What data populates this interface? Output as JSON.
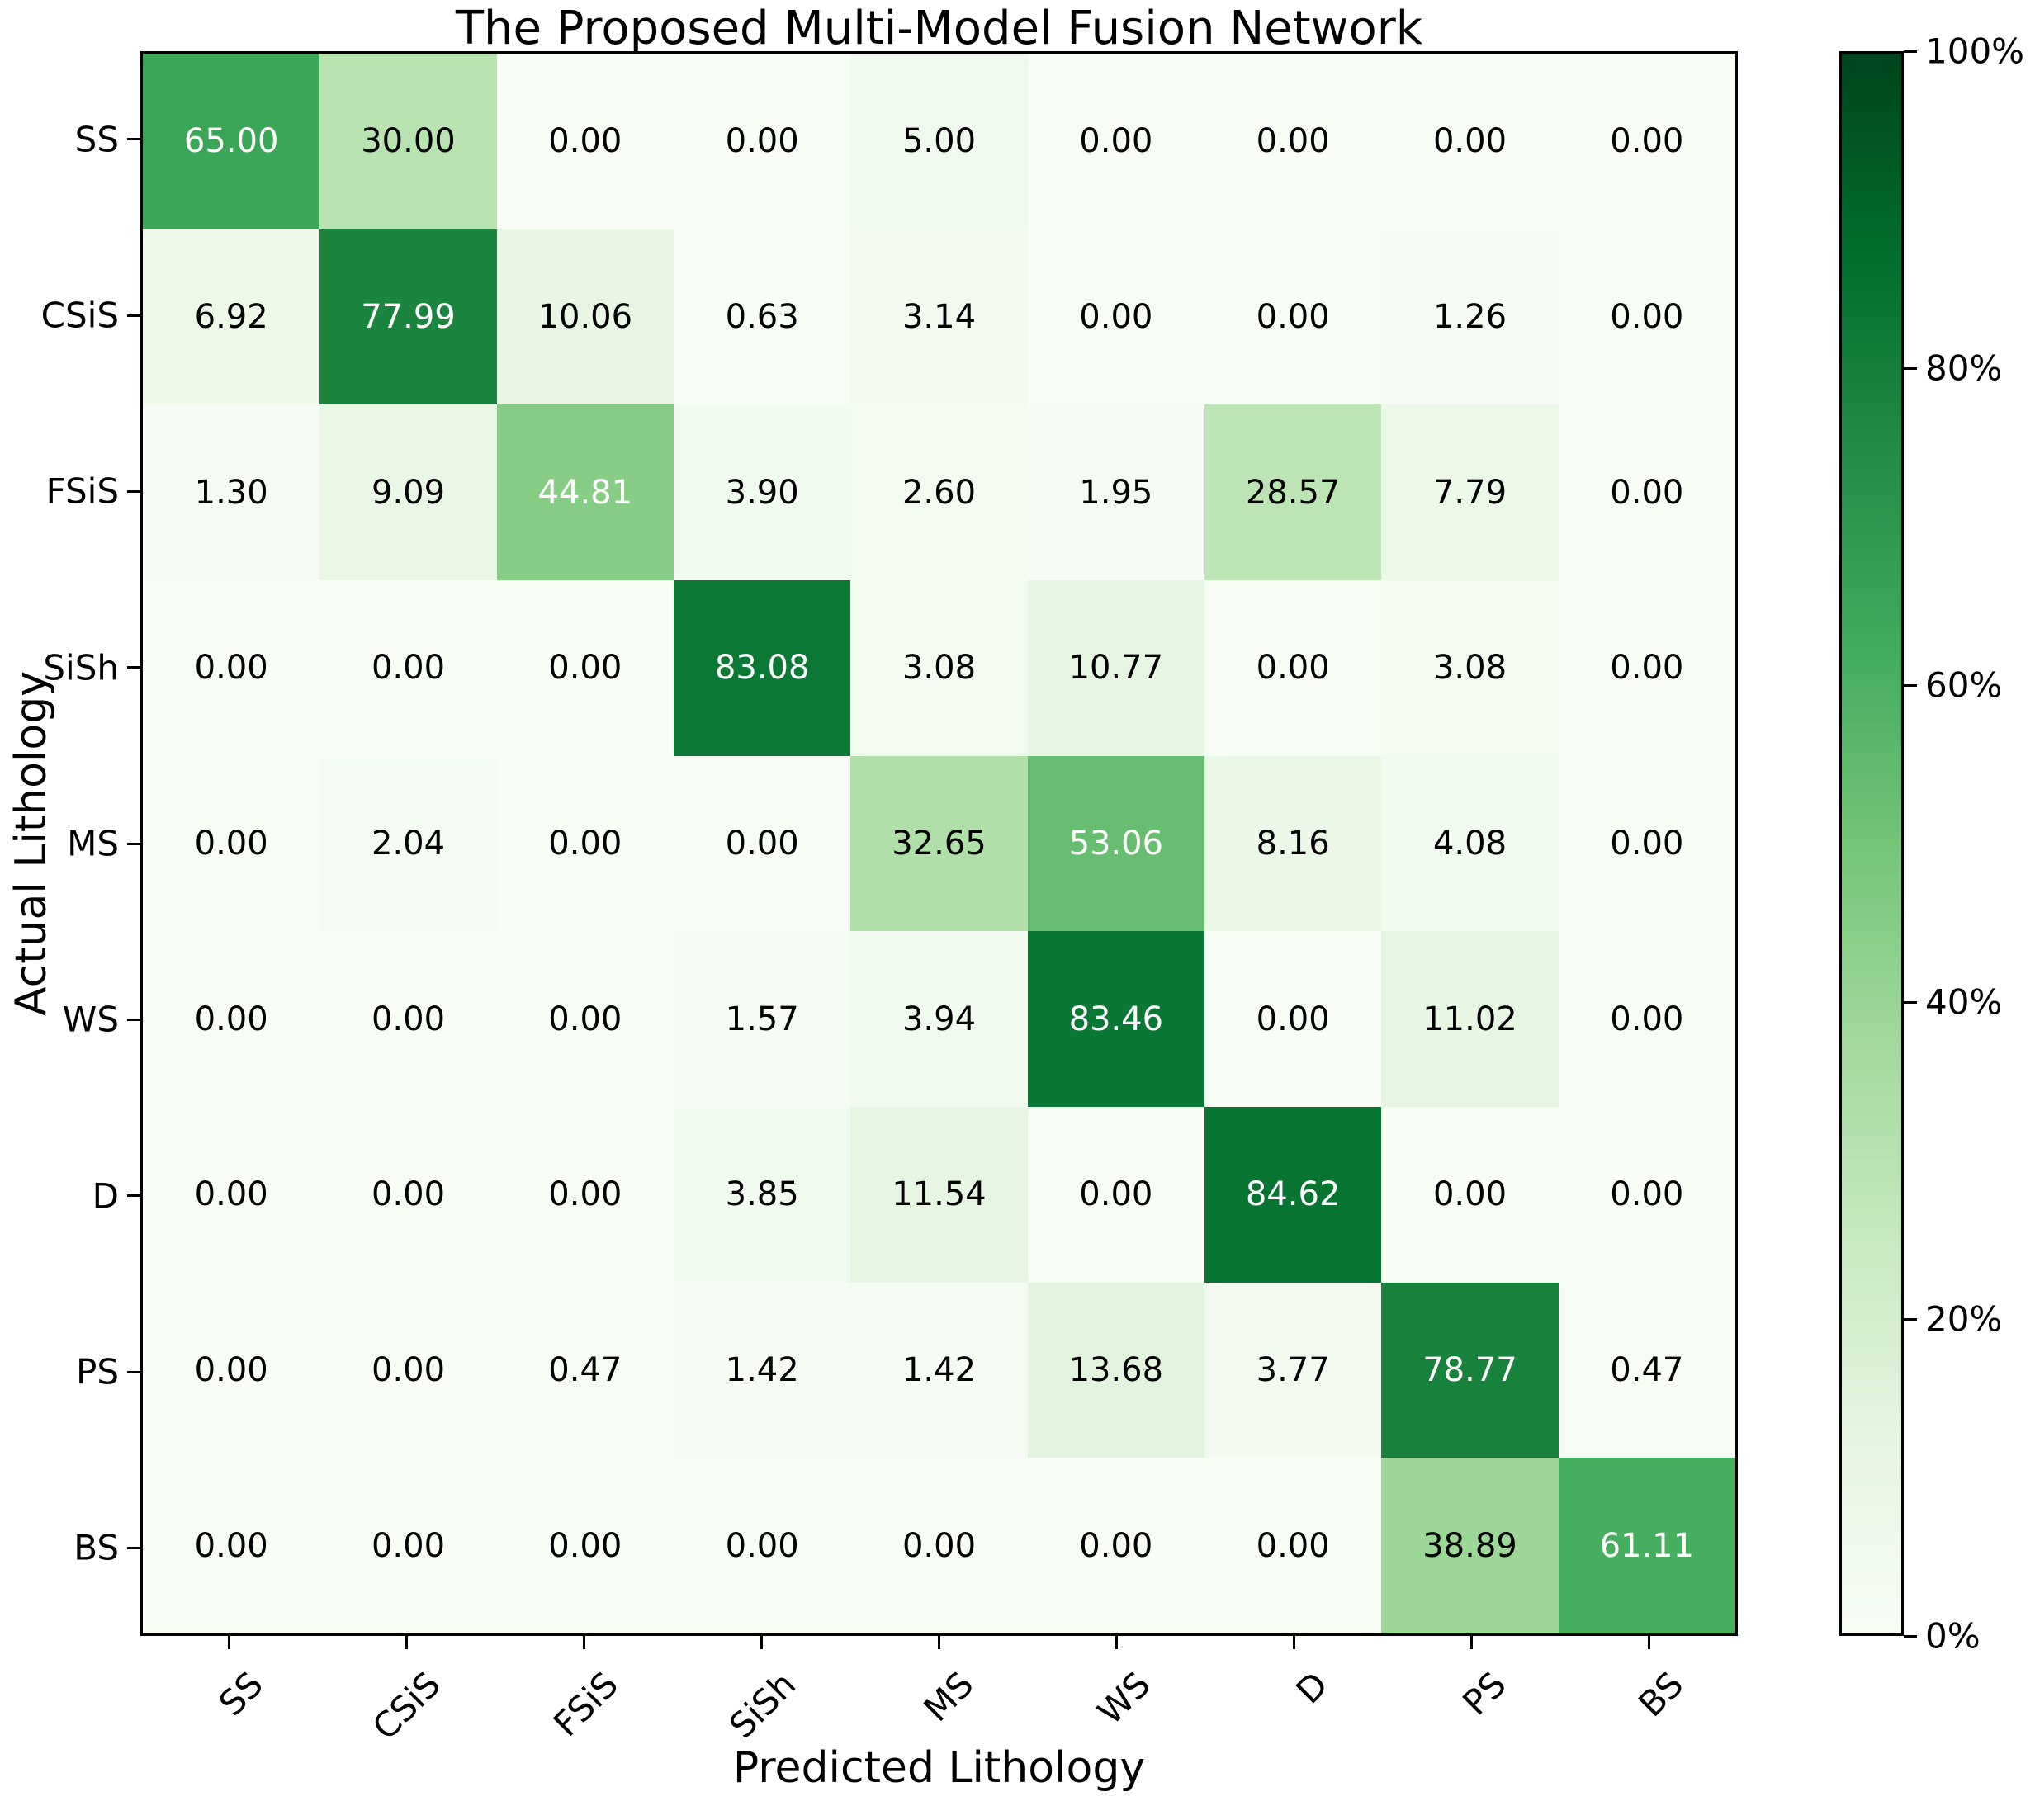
{
  "chart_data": {
    "type": "heatmap",
    "title": "The Proposed Multi-Model Fusion Network",
    "xlabel": "Predicted Lithology",
    "ylabel": "Actual Lithology",
    "x_categories": [
      "SS",
      "CSiS",
      "FSiS",
      "SiSh",
      "MS",
      "WS",
      "D",
      "PS",
      "BS"
    ],
    "y_categories": [
      "SS",
      "CSiS",
      "FSiS",
      "SiSh",
      "MS",
      "WS",
      "D",
      "PS",
      "BS"
    ],
    "matrix": [
      [
        65.0,
        30.0,
        0.0,
        0.0,
        5.0,
        0.0,
        0.0,
        0.0,
        0.0
      ],
      [
        6.92,
        77.99,
        10.06,
        0.63,
        3.14,
        0.0,
        0.0,
        1.26,
        0.0
      ],
      [
        1.3,
        9.09,
        44.81,
        3.9,
        2.6,
        1.95,
        28.57,
        7.79,
        0.0
      ],
      [
        0.0,
        0.0,
        0.0,
        83.08,
        3.08,
        10.77,
        0.0,
        3.08,
        0.0
      ],
      [
        0.0,
        2.04,
        0.0,
        0.0,
        32.65,
        53.06,
        8.16,
        4.08,
        0.0
      ],
      [
        0.0,
        0.0,
        0.0,
        1.57,
        3.94,
        83.46,
        0.0,
        11.02,
        0.0
      ],
      [
        0.0,
        0.0,
        0.0,
        3.85,
        11.54,
        0.0,
        84.62,
        0.0,
        0.0
      ],
      [
        0.0,
        0.0,
        0.47,
        1.42,
        1.42,
        13.68,
        3.77,
        78.77,
        0.47
      ],
      [
        0.0,
        0.0,
        0.0,
        0.0,
        0.0,
        0.0,
        0.0,
        38.89,
        61.11
      ]
    ],
    "value_decimals": 2,
    "value_range": [
      0,
      100
    ],
    "colormap_name": "Greens",
    "colormap_stops": [
      "#f7fcf5",
      "#e5f5e0",
      "#c7e9c0",
      "#a1d99b",
      "#74c476",
      "#41ab5d",
      "#238b45",
      "#006d2c",
      "#00441b"
    ],
    "colorbar_ticks": [
      {
        "value": 0,
        "label": "0%"
      },
      {
        "value": 20,
        "label": "20%"
      },
      {
        "value": 40,
        "label": "40%"
      },
      {
        "value": 60,
        "label": "60%"
      },
      {
        "value": 80,
        "label": "80%"
      },
      {
        "value": 100,
        "label": "100%"
      }
    ],
    "text_color_threshold": 42,
    "text_colors": {
      "below": "#000000",
      "above": "#ffffff"
    },
    "grid": false,
    "legend_position": "colorbar-right"
  }
}
